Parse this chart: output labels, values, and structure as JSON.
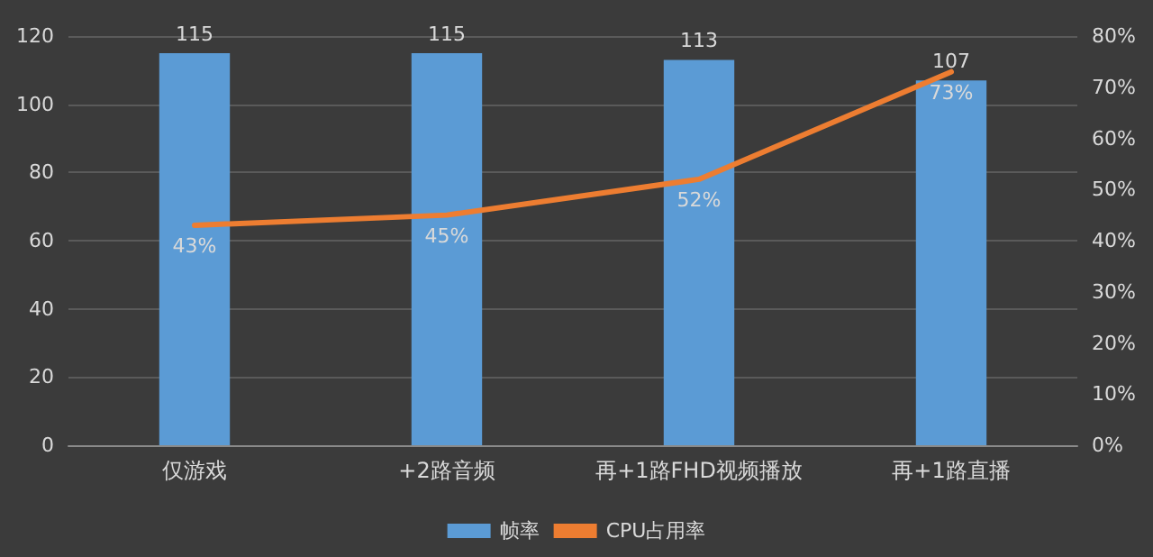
{
  "chart_data": {
    "type": "bar",
    "categories": [
      "仅游戏",
      "+2路音频",
      "再+1路FHD视频播放",
      "再+1路直播"
    ],
    "series": [
      {
        "name": "帧率",
        "color": "#5b9bd5",
        "values": [
          115,
          115,
          113,
          107
        ],
        "value_labels": [
          "115",
          "115",
          "113",
          "107"
        ]
      },
      {
        "name": "CPU占用率",
        "type": "line",
        "axis": "y2",
        "color": "#ed7d31",
        "values": [
          43,
          45,
          52,
          73
        ],
        "value_labels": [
          "43%",
          "45%",
          "52%",
          "73%"
        ]
      }
    ],
    "ylim": [
      0,
      120
    ],
    "yticks": [
      0,
      20,
      40,
      60,
      80,
      100,
      120
    ],
    "y2lim": [
      0,
      80
    ],
    "y2ticks": [
      {
        "value": 0,
        "label": "0%"
      },
      {
        "value": 10,
        "label": "10%"
      },
      {
        "value": 20,
        "label": "20%"
      },
      {
        "value": 30,
        "label": "30%"
      },
      {
        "value": 40,
        "label": "40%"
      },
      {
        "value": 50,
        "label": "50%"
      },
      {
        "value": 60,
        "label": "60%"
      },
      {
        "value": 70,
        "label": "70%"
      },
      {
        "value": 80,
        "label": "80%"
      }
    ],
    "grid": "y",
    "legend": "bottom",
    "marker": "none",
    "line_style": "solid"
  }
}
